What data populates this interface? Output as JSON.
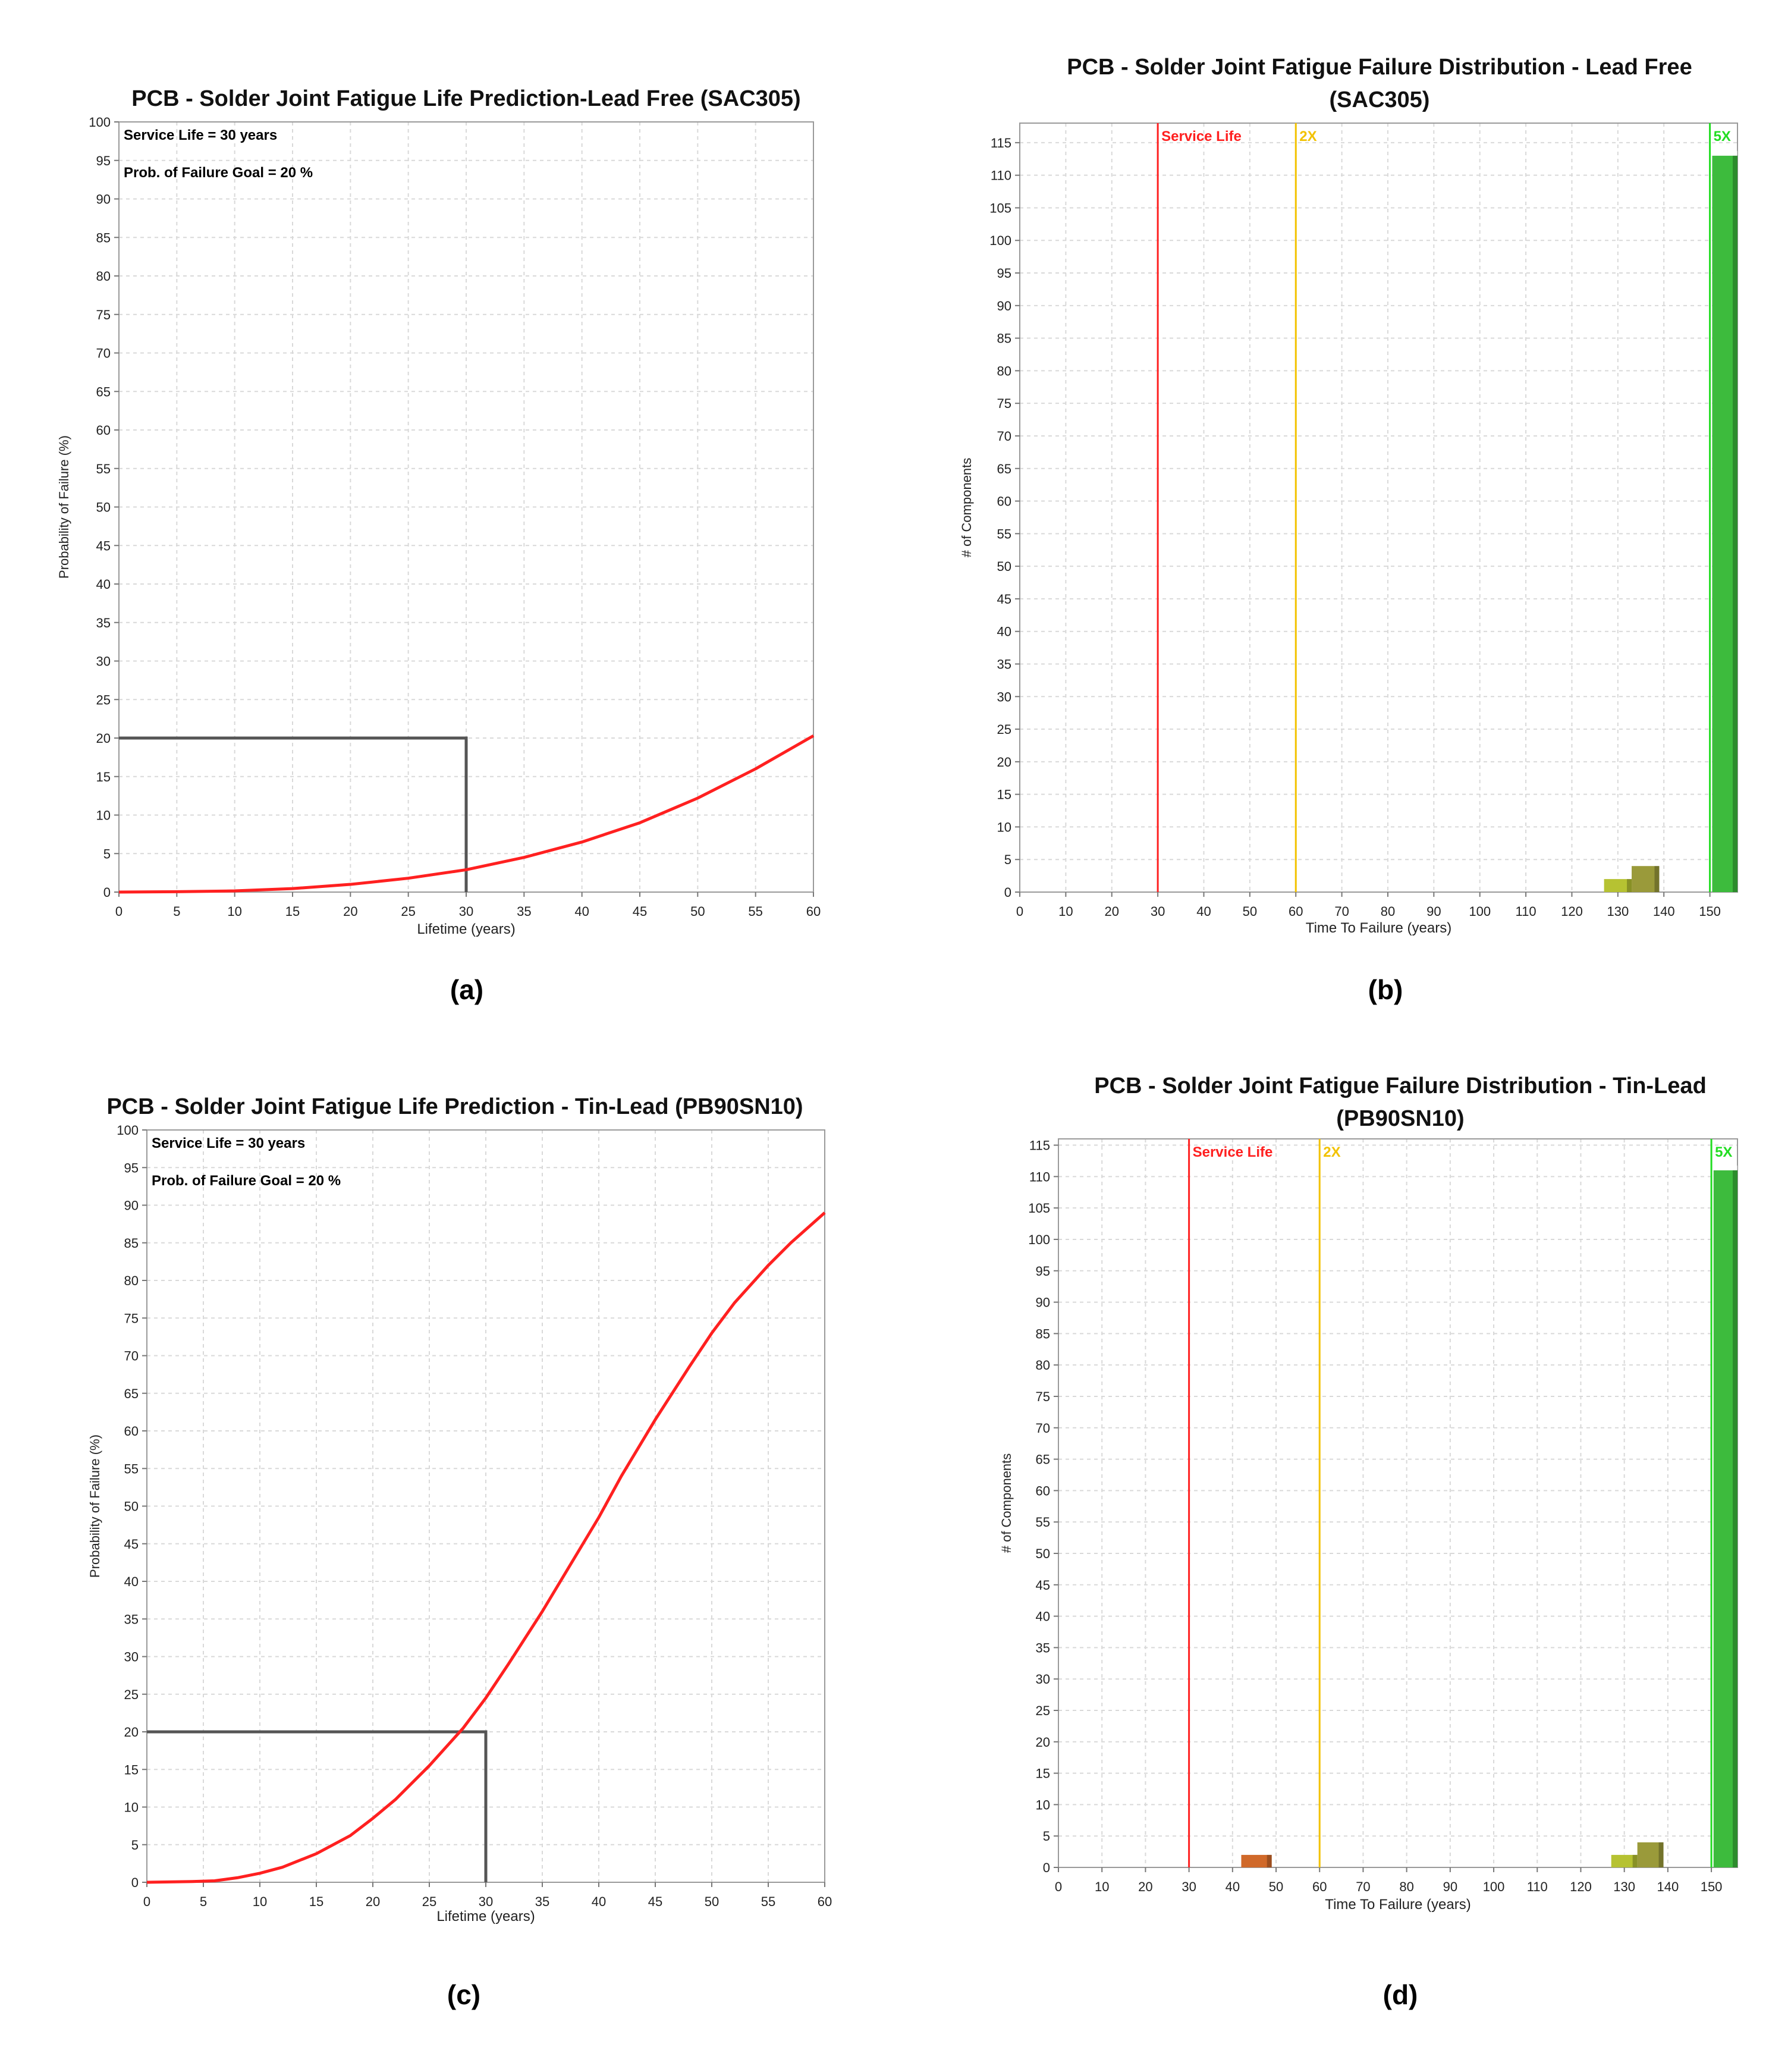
{
  "chart_data": [
    {
      "id": "a",
      "type": "line",
      "title": [
        "PCB - Solder Joint Fatigue Life Prediction-Lead Free (SAC305)"
      ],
      "xlabel": "Lifetime (years)",
      "ylabel": "Probability of Failure (%)",
      "xlim": [
        0,
        60
      ],
      "ylim": [
        0,
        100
      ],
      "xticks": [
        0,
        5,
        10,
        15,
        20,
        25,
        30,
        35,
        40,
        45,
        50,
        55,
        60
      ],
      "yticks": [
        0,
        5,
        10,
        15,
        20,
        25,
        30,
        35,
        40,
        45,
        50,
        55,
        60,
        65,
        70,
        75,
        80,
        85,
        90,
        95,
        100
      ],
      "grid": true,
      "annotations": [
        "Service Life = 30 years",
        "Prob. of Failure Goal = 20 %"
      ],
      "goal_box": {
        "x": 30,
        "y": 20,
        "color": "#555555"
      },
      "series": [
        {
          "color": "#ff2020",
          "x": [
            0,
            5,
            10,
            15,
            20,
            25,
            30,
            35,
            40,
            45,
            50,
            55,
            60
          ],
          "y": [
            0,
            0.05,
            0.15,
            0.45,
            1.0,
            1.8,
            2.9,
            4.5,
            6.5,
            9.0,
            12.2,
            16.0,
            20.3
          ]
        }
      ],
      "panel_label": "(a)"
    },
    {
      "id": "b",
      "type": "bar",
      "title": [
        "PCB - Solder Joint Fatigue Failure Distribution - Lead Free",
        "(SAC305)"
      ],
      "xlabel": "Time To Failure (years)",
      "ylabel": "# of Components",
      "xlim": [
        0,
        156
      ],
      "ylim": [
        0,
        118
      ],
      "xticks": [
        0,
        10,
        20,
        30,
        40,
        50,
        60,
        70,
        80,
        90,
        100,
        110,
        120,
        130,
        140,
        150
      ],
      "yticks": [
        0,
        5,
        10,
        15,
        20,
        25,
        30,
        35,
        40,
        45,
        50,
        55,
        60,
        65,
        70,
        75,
        80,
        85,
        90,
        95,
        100,
        105,
        110,
        115
      ],
      "grid": true,
      "vlines": [
        {
          "x": 30,
          "label": "Service Life",
          "color": "#ff2020"
        },
        {
          "x": 60,
          "label": "2X",
          "color": "#f2c200"
        },
        {
          "x": 150,
          "label": "5X",
          "color": "#22dd22"
        }
      ],
      "bars": [
        {
          "x0": 127,
          "x1": 133,
          "value": 2,
          "color": "#b6c232"
        },
        {
          "x0": 133,
          "x1": 139,
          "value": 4,
          "color": "#9a9a3a"
        },
        {
          "x0": 150.5,
          "x1": 156,
          "value": 113,
          "color": "#3dbb3d"
        }
      ],
      "panel_label": "(b)"
    },
    {
      "id": "c",
      "type": "line",
      "title": [
        "PCB - Solder Joint Fatigue Life Prediction - Tin-Lead (PB90SN10)"
      ],
      "xlabel": "Lifetime (years)",
      "ylabel": "Probability of Failure (%)",
      "xlim": [
        0,
        60
      ],
      "ylim": [
        0,
        100
      ],
      "xticks": [
        0,
        5,
        10,
        15,
        20,
        25,
        30,
        35,
        40,
        45,
        50,
        55,
        60
      ],
      "yticks": [
        0,
        5,
        10,
        15,
        20,
        25,
        30,
        35,
        40,
        45,
        50,
        55,
        60,
        65,
        70,
        75,
        80,
        85,
        90,
        95,
        100
      ],
      "grid": true,
      "annotations": [
        "Service Life = 30 years",
        "Prob. of Failure Goal = 20 %"
      ],
      "goal_box": {
        "x": 30,
        "y": 20,
        "color": "#555555"
      },
      "series": [
        {
          "color": "#ff2020",
          "x": [
            0,
            2,
            4,
            6,
            8,
            10,
            12,
            15,
            18,
            20,
            22,
            25,
            28,
            30,
            32,
            35,
            38,
            40,
            42,
            45,
            48,
            50,
            52,
            55,
            57,
            60
          ],
          "y": [
            0,
            0.05,
            0.1,
            0.2,
            0.6,
            1.2,
            2.0,
            3.8,
            6.2,
            8.5,
            11.0,
            15.5,
            20.5,
            24.5,
            29.0,
            36.0,
            43.5,
            48.5,
            54.0,
            61.5,
            68.5,
            73.0,
            77.0,
            82.0,
            85.0,
            89.0
          ]
        }
      ],
      "panel_label": "(c)"
    },
    {
      "id": "d",
      "type": "bar",
      "title": [
        "PCB - Solder Joint Fatigue Failure Distribution - Tin-Lead",
        "(PB90SN10)"
      ],
      "xlabel": "Time To Failure (years)",
      "ylabel": "# of Components",
      "xlim": [
        0,
        156
      ],
      "ylim": [
        0,
        116
      ],
      "xticks": [
        0,
        10,
        20,
        30,
        40,
        50,
        60,
        70,
        80,
        90,
        100,
        110,
        120,
        130,
        140,
        150
      ],
      "yticks": [
        0,
        5,
        10,
        15,
        20,
        25,
        30,
        35,
        40,
        45,
        50,
        55,
        60,
        65,
        70,
        75,
        80,
        85,
        90,
        95,
        100,
        105,
        110,
        115
      ],
      "grid": true,
      "vlines": [
        {
          "x": 30,
          "label": "Service Life",
          "color": "#ff2020"
        },
        {
          "x": 60,
          "label": "2X",
          "color": "#f2c200"
        },
        {
          "x": 150,
          "label": "5X",
          "color": "#22dd22"
        }
      ],
      "bars": [
        {
          "x0": 42,
          "x1": 49,
          "value": 2,
          "color": "#d0692a"
        },
        {
          "x0": 127,
          "x1": 133,
          "value": 2,
          "color": "#b6c232"
        },
        {
          "x0": 133,
          "x1": 139,
          "value": 4,
          "color": "#9a9a3a"
        },
        {
          "x0": 150.5,
          "x1": 156,
          "value": 111,
          "color": "#3dbb3d"
        }
      ],
      "panel_label": "(d)"
    }
  ]
}
